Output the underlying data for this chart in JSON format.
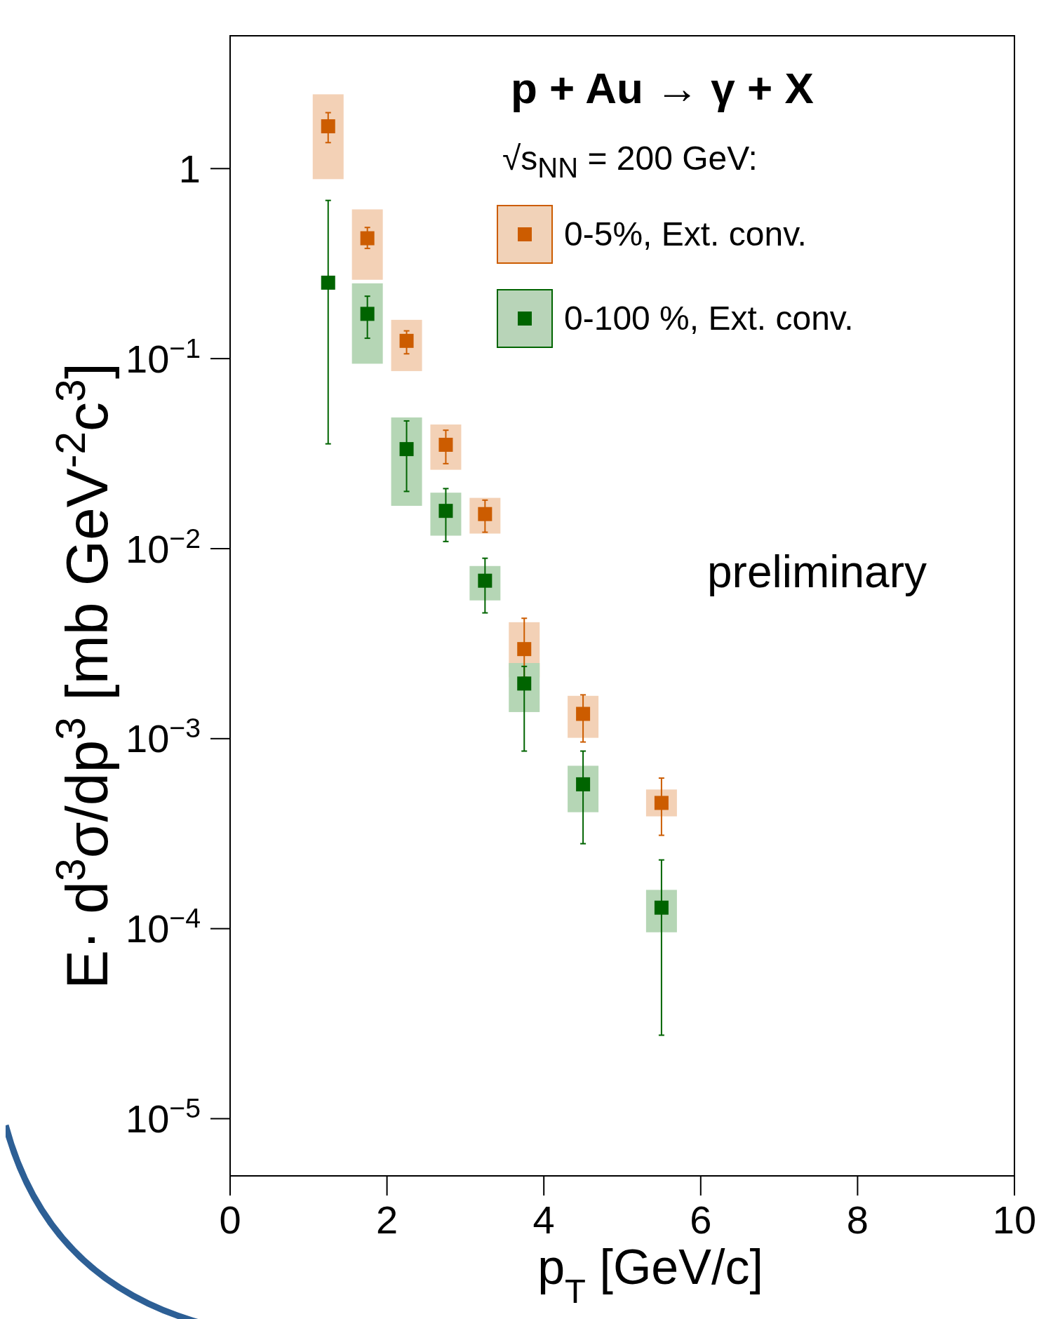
{
  "chart_data": {
    "type": "scatter",
    "xlabel": "p$_{T}$ [GeV/c]",
    "ylabel": "E· d$^{3}$σ/dp$^{3}$ [mb GeV$^{-2}$c$^{3}$]",
    "legend_title": "√s$_{NN}$ = 200 GeV:",
    "annotations": [
      "p + Au → γ + X",
      "preliminary"
    ],
    "log": "y",
    "legend": "top right",
    "marker": "square",
    "xlim": [
      0,
      10
    ],
    "xticks": [
      0,
      2,
      4,
      6,
      8,
      10
    ],
    "ylim": [
      5e-06,
      5
    ],
    "yticks": [
      {
        "value": 1e-05,
        "label": "10$^{−5}$"
      },
      {
        "value": 0.0001,
        "label": "10$^{−4}$"
      },
      {
        "value": 0.001,
        "label": "10$^{−3}$"
      },
      {
        "value": 0.01,
        "label": "10$^{−2}$"
      },
      {
        "value": 0.1,
        "label": "10$^{−1}$"
      },
      1
    ],
    "series": [
      {
        "type": "bar",
        "color": "#f3d1b6",
        "x": [
          1.25,
          1.75,
          2.25,
          2.75,
          3.25,
          3.75,
          4.5,
          5.5
        ],
        "base": [
          0.88,
          0.26,
          0.086,
          0.026,
          0.012,
          0.0021,
          0.00101,
          0.00039
        ],
        "values": [
          1.58,
          0.35,
          0.074,
          0.019,
          0.0065,
          0.002,
          0.00067,
          0.00015
        ]
      },
      {
        "type": "bar",
        "color": "#b5d6b5",
        "x": [
          1.75,
          2.25,
          2.75,
          3.25,
          3.75,
          4.5,
          5.5
        ],
        "base": [
          0.094,
          0.0168,
          0.0117,
          0.00534,
          0.00138,
          0.00041,
          9.57e-05
        ],
        "values": [
          0.155,
          0.0322,
          0.008,
          0.00276,
          0.00112,
          0.00031,
          6.43e-05
        ]
      },
      {
        "name": "0-5%, Ext. conv.",
        "color": "#cc5c00",
        "x": [
          1.25,
          1.75,
          2.25,
          2.75,
          3.25,
          3.75,
          4.5,
          5.5
        ],
        "values": [
          1.67,
          0.43,
          0.124,
          0.0352,
          0.0152,
          0.00296,
          0.00135,
          0.000459
        ],
        "errors": [
          [
            1.37,
            1.97
          ],
          [
            0.38,
            0.49
          ],
          [
            0.106,
            0.14
          ],
          [
            0.028,
            0.042
          ],
          [
            0.0122,
            0.018
          ],
          [
            0.0021,
            0.0043
          ],
          [
            0.00096,
            0.0017
          ],
          [
            0.00031,
            0.00062
          ]
        ]
      },
      {
        "name": "0-100 %, Ext. conv.",
        "color": "#006400",
        "x": [
          1.25,
          1.75,
          2.25,
          2.75,
          3.25,
          3.75,
          4.5,
          5.5
        ],
        "values": [
          0.251,
          0.172,
          0.0334,
          0.0158,
          0.00678,
          0.00195,
          0.000575,
          0.000129
        ],
        "errors": [
          [
            0.0356,
            0.68
          ],
          [
            0.128,
            0.213
          ],
          [
            0.02,
            0.047
          ],
          [
            0.0109,
            0.0207
          ],
          [
            0.00459,
            0.0089
          ],
          [
            0.00086,
            0.0024
          ],
          [
            0.00028,
            0.00086
          ],
          [
            2.75e-05,
            0.00023
          ]
        ]
      }
    ]
  }
}
